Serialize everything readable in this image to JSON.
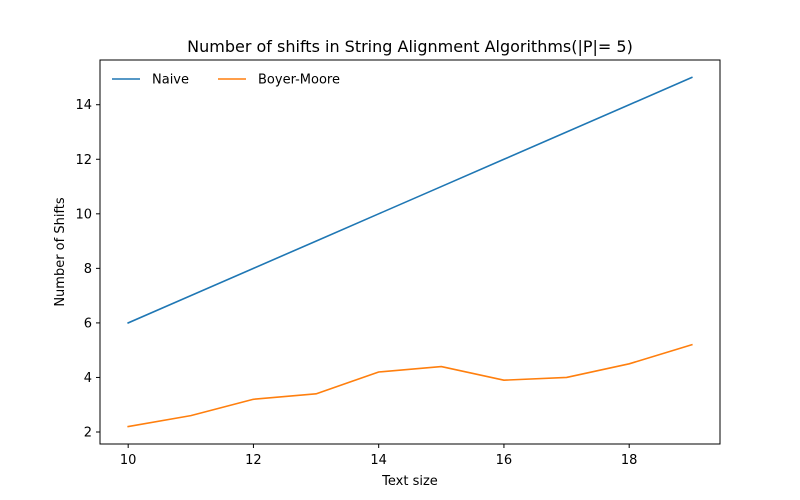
{
  "chart_data": {
    "type": "line",
    "title": "Number of shifts in String Alignment Algorithms(|P|= 5)",
    "xlabel": "Text size",
    "ylabel": "Number of Shifts",
    "x": [
      10,
      11,
      12,
      13,
      14,
      15,
      16,
      17,
      18,
      19
    ],
    "xlim": [
      9.55,
      19.45
    ],
    "ylim": [
      1.56,
      15.64
    ],
    "xticks": [
      10,
      12,
      14,
      16,
      18
    ],
    "yticks": [
      2,
      4,
      6,
      8,
      10,
      12,
      14
    ],
    "grid": false,
    "legend_position": "top-left",
    "series": [
      {
        "name": "Naive",
        "color": "#1f77b4",
        "values": [
          6,
          7,
          8,
          9,
          10,
          11,
          12,
          13,
          14,
          15
        ]
      },
      {
        "name": "Boyer-Moore",
        "color": "#ff7f0e",
        "values": [
          2.2,
          2.6,
          3.2,
          3.4,
          4.2,
          4.4,
          3.9,
          4.0,
          4.5,
          5.2
        ]
      }
    ]
  }
}
